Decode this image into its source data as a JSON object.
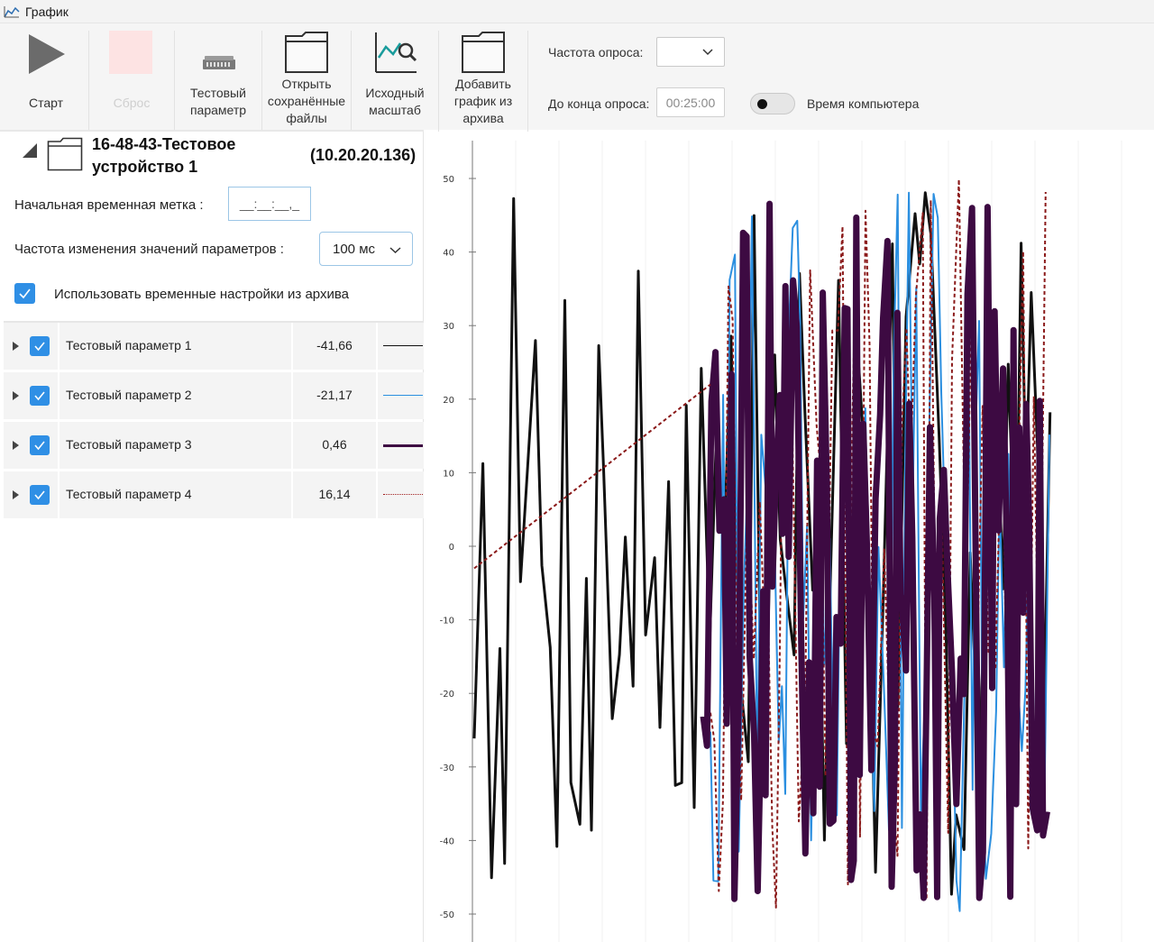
{
  "window": {
    "title": "График"
  },
  "toolbar": {
    "start_label": "Старт",
    "reset_label": "Сброс",
    "test_param_label": "Тестовый параметр",
    "open_saved_label": "Открыть сохранённые файлы",
    "reset_zoom_label": "Исходный масштаб",
    "add_archive_label": "Добавить график из архива",
    "poll_rate_label": "Частота опроса:",
    "poll_remaining_label": "До конца опроса:",
    "poll_remaining_value": "00:25:00",
    "computer_time_label": "Время компьютера"
  },
  "device": {
    "name": "16-48-43-Тестовое устройство 1",
    "ip": "(10.20.20.136)",
    "start_timestamp_label": "Начальная временная метка :",
    "start_timestamp_value": "__:__:__,_",
    "rate_label": "Частота изменения значений параметров :",
    "rate_value": "100 мс",
    "use_archive_label": "Использовать временные настройки из архива",
    "use_archive_checked": true
  },
  "parameters": [
    {
      "name": "Тестовый параметр 1",
      "value": "-41,66",
      "color": "#111111",
      "style": "solid",
      "checked": true
    },
    {
      "name": "Тестовый параметр 2",
      "value": "-21,17",
      "color": "#2b8fe0",
      "style": "solid",
      "checked": true
    },
    {
      "name": "Тестовый параметр 3",
      "value": "0,46",
      "color": "#3d0a42",
      "style": "thick",
      "checked": true
    },
    {
      "name": "Тестовый параметр 4",
      "value": "16,14",
      "color": "#a01c1c",
      "style": "dotted",
      "checked": true
    }
  ],
  "chart_data": {
    "type": "line",
    "title": "",
    "xlabel": "",
    "ylabel": "",
    "ylim": [
      -50,
      50
    ],
    "yticks": [
      "50",
      "40",
      "30",
      "20",
      "10",
      "0",
      "-10",
      "-20",
      "-30",
      "-40",
      "-50"
    ],
    "grid": true,
    "series": [
      {
        "color": "#111111",
        "width": 3
      },
      {
        "color": "#2b8fe0",
        "width": 2
      },
      {
        "color": "#3d0a42",
        "width": 7
      },
      {
        "color": "#8b1a1a",
        "width": 2,
        "dash": "4,3"
      }
    ]
  }
}
